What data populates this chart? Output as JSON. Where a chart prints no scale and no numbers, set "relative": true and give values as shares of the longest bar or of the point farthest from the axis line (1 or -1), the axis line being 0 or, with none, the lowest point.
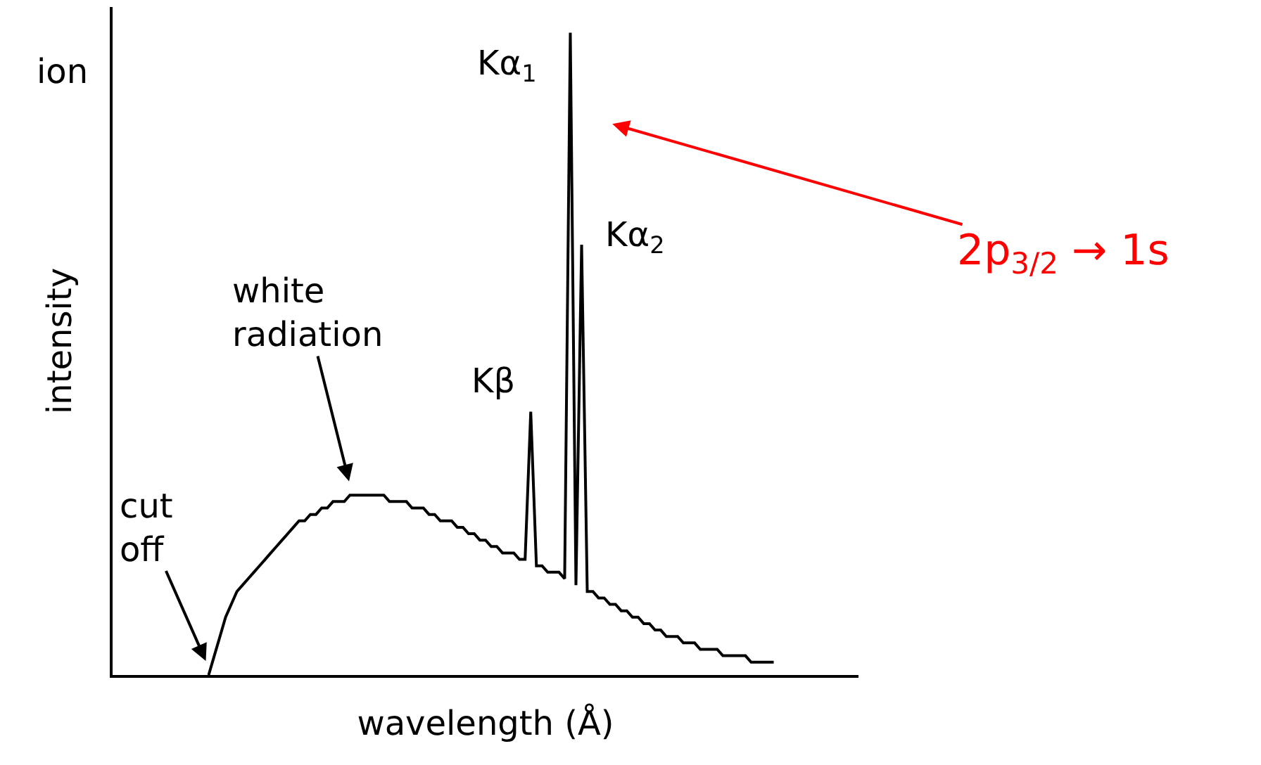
{
  "chart_data": {
    "type": "line",
    "relative": true,
    "xlabel": "wavelength (Å)",
    "ylabel": "intensity",
    "categories": [
      null,
      null,
      null,
      null,
      null,
      null,
      null,
      null,
      null,
      null,
      null,
      null,
      null,
      null,
      null,
      null,
      null,
      null,
      null,
      null,
      null,
      null,
      null,
      null,
      null,
      null,
      null,
      null,
      null,
      null,
      null,
      null,
      null,
      null,
      null,
      null,
      null,
      null,
      null,
      null,
      null,
      null,
      null,
      null,
      null,
      null,
      null,
      null,
      null,
      null,
      null,
      null,
      null,
      null,
      null,
      null,
      null,
      null,
      null,
      null,
      null,
      null,
      null,
      null,
      null,
      null,
      null,
      null,
      null,
      null,
      null,
      null,
      null,
      null,
      null,
      null,
      null,
      null,
      null,
      null,
      null,
      null,
      null,
      null,
      null,
      null,
      null,
      null,
      null,
      null,
      null,
      null,
      null,
      null,
      null,
      null,
      null,
      null,
      null,
      null,
      null,
      null,
      null,
      null,
      null,
      null,
      null,
      null,
      null,
      null,
      null,
      null,
      null,
      null,
      null,
      null,
      null,
      null,
      null,
      null,
      null,
      null,
      null,
      null,
      null,
      null,
      null,
      null,
      null,
      null,
      null,
      null,
      null
    ],
    "series": [
      {
        "color": "#000000",
        "values": [
          null,
          null,
          null,
          null,
          null,
          null,
          null,
          null,
          null,
          null,
          null,
          null,
          null,
          null,
          null,
          null,
          null,
          0,
          0.03,
          0.06,
          0.09,
          0.11,
          0.13,
          0.14,
          0.15,
          0.16,
          0.17,
          0.18,
          0.19,
          0.2,
          0.21,
          0.22,
          0.23,
          0.24,
          0.24,
          0.25,
          0.25,
          0.26,
          0.26,
          0.27,
          0.27,
          0.27,
          0.28,
          0.28,
          0.28,
          0.28,
          0.28,
          0.28,
          0.28,
          0.27,
          0.27,
          0.27,
          0.27,
          0.26,
          0.26,
          0.26,
          0.25,
          0.25,
          0.24,
          0.24,
          0.24,
          0.23,
          0.23,
          0.22,
          0.22,
          0.21,
          0.21,
          0.2,
          0.2,
          0.19,
          0.19,
          0.19,
          0.18,
          0.18,
          0.41,
          0.17,
          0.17,
          0.16,
          0.16,
          0.16,
          0.15,
          1,
          0.14,
          0.67,
          0.13,
          0.13,
          0.12,
          0.12,
          0.11,
          0.11,
          0.1,
          0.1,
          0.09,
          0.09,
          0.08,
          0.08,
          0.07,
          0.07,
          0.06,
          0.06,
          0.06,
          0.05,
          0.05,
          0.05,
          0.04,
          0.04,
          0.04,
          0.04,
          0.03,
          0.03,
          0.03,
          0.03,
          0.03,
          0.02,
          0.02,
          0.02,
          0.02,
          0.02,
          null,
          null,
          null,
          null,
          null,
          null,
          null,
          null,
          null,
          null,
          null,
          null,
          null,
          null,
          null
        ]
      }
    ],
    "annotations": [
      "ion",
      "Kα$_{1}$",
      "Kα$_{2}$",
      "Kβ",
      "white\nradiation",
      "cut\noff",
      "2p$_{3/2}$ → 1s"
    ]
  }
}
